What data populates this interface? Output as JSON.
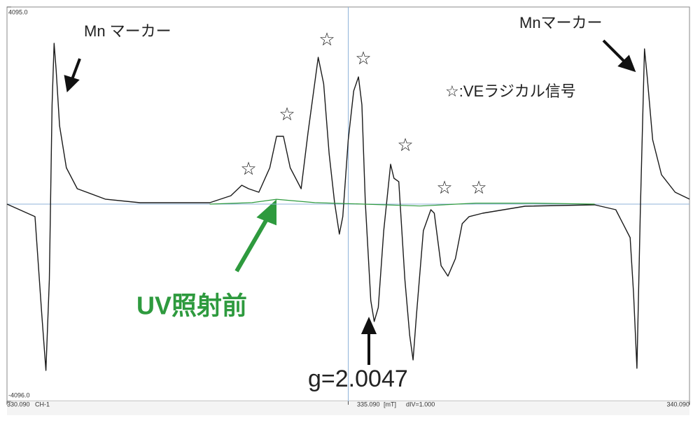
{
  "chart_data": {
    "type": "line",
    "xlim": [
      330.09,
      340.09
    ],
    "ylim": [
      -4096,
      4095
    ],
    "xticks": [
      {
        "value": 330.09,
        "label": "330.090"
      },
      {
        "value": 335.09,
        "label": "335.090"
      },
      {
        "value": 340.09,
        "label": "340.090"
      }
    ],
    "yticks": [
      {
        "value": 4095,
        "label": "4095.0"
      },
      {
        "value": -4096,
        "label": "-4096.0"
      }
    ],
    "x_unit": "[mT]",
    "channel": "CH-1",
    "division": "dIV=1.000",
    "crosshair": {
      "x": 335.09,
      "y": 0
    },
    "series": [
      {
        "color": "#1a1a1a",
        "x": [
          330.09,
          330.5,
          330.6,
          330.66,
          330.71,
          330.75,
          330.78,
          330.81,
          330.86,
          330.96,
          331.12,
          331.53,
          332.04,
          333.06,
          333.37,
          333.53,
          333.63,
          333.78,
          333.94,
          334.04,
          334.14,
          334.24,
          334.4,
          334.5,
          334.65,
          334.73,
          334.81,
          334.89,
          334.96,
          335.01,
          335.09,
          335.17,
          335.24,
          335.29,
          335.34,
          335.42,
          335.47,
          335.53,
          335.61,
          335.71,
          335.76,
          335.83,
          335.92,
          335.99,
          336.04,
          336.09,
          336.19,
          336.3,
          336.35,
          336.45,
          336.55,
          336.66,
          336.76,
          336.86,
          337.06,
          337.68,
          338.7,
          339.01,
          339.22,
          339.27,
          339.32,
          339.37,
          339.43,
          339.47,
          339.55,
          339.68,
          339.88,
          340.09
        ],
        "values": [
          0,
          -261,
          -2294,
          -3456,
          -1568,
          2062,
          3340,
          2788,
          1626,
          755,
          319,
          102,
          29,
          29,
          174,
          392,
          319,
          247,
          755,
          1408,
          1408,
          755,
          319,
          1481,
          3049,
          2497,
          1045,
          29,
          -624,
          -261,
          1336,
          2352,
          2643,
          2062,
          29,
          -2004,
          -2439,
          -2149,
          -552,
          828,
          537,
          465,
          -1568,
          -2730,
          -3238,
          -2294,
          -552,
          -116,
          -189,
          -1278,
          -1496,
          -1133,
          -407,
          -261,
          -189,
          -44,
          -15,
          -116,
          -697,
          -1859,
          -3412,
          -116,
          3223,
          2643,
          1336,
          610,
          247,
          102
        ]
      },
      {
        "name": "UV照射前",
        "color": "#2e9a3e",
        "x": [
          333.06,
          333.68,
          334.04,
          334.6,
          335.32,
          336.14,
          336.96,
          337.78,
          338.7
        ],
        "values": [
          0,
          30,
          100,
          30,
          0,
          -40,
          20,
          20,
          0
        ]
      }
    ],
    "annotations": {
      "marker_left": "Mn マーカー",
      "marker_right": "Mnマーカー",
      "stars": [
        "☆",
        "☆",
        "☆",
        "☆",
        "☆",
        "☆",
        "☆"
      ],
      "star_legend": "☆:VEラジカル信号",
      "g_value": "g=2.0047"
    }
  }
}
